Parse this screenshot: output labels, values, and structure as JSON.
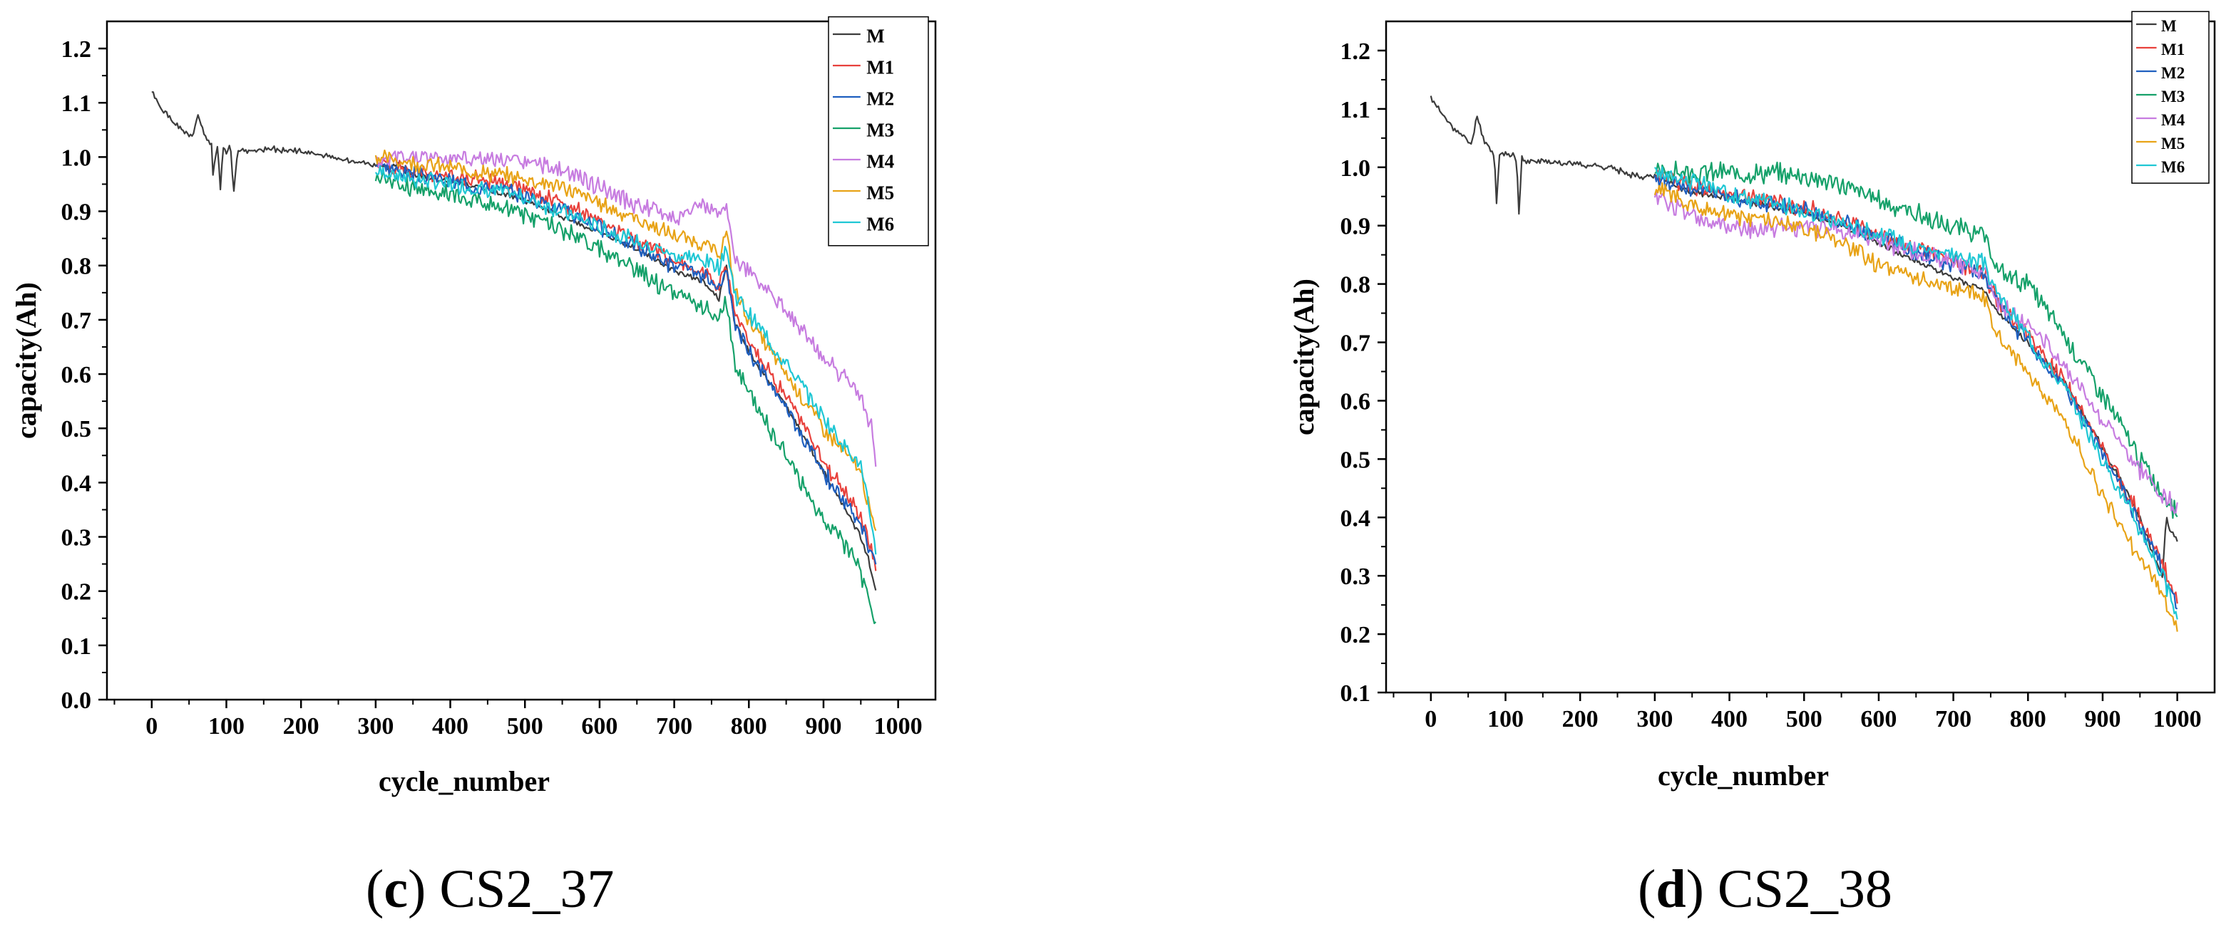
{
  "chart_data": [
    {
      "type": "line",
      "panel": "(c)",
      "caption_letter": "c",
      "caption_name": "CS2_37",
      "xlabel": "cycle_number",
      "ylabel": "capacity(Ah)",
      "xlim": [
        -60,
        1050
      ],
      "ylim": [
        0.0,
        1.25
      ],
      "xticks": [
        0,
        100,
        200,
        300,
        400,
        500,
        600,
        700,
        800,
        900,
        1000
      ],
      "yticks": [
        0.0,
        0.1,
        0.2,
        0.3,
        0.4,
        0.5,
        0.6,
        0.7,
        0.8,
        0.9,
        1.0,
        1.1,
        1.2
      ],
      "legend_position": "top-right",
      "series": [
        {
          "name": "M",
          "color": "#3c3c3c",
          "x": [
            0,
            10,
            25,
            40,
            55,
            62,
            70,
            80,
            82,
            88,
            92,
            96,
            100,
            105,
            110,
            115,
            130,
            160,
            200,
            240,
            260,
            280,
            300,
            320,
            330,
            340,
            350,
            360,
            380,
            400,
            450,
            500,
            550,
            600,
            650,
            700,
            740,
            760,
            770,
            780,
            800,
            850,
            900,
            930,
            950,
            960,
            965,
            970
          ],
          "y": [
            1.12,
            1.095,
            1.07,
            1.05,
            1.035,
            1.08,
            1.04,
            1.02,
            0.965,
            1.02,
            0.945,
            1.02,
            1.01,
            1.025,
            0.935,
            1.015,
            1.01,
            1.015,
            1.01,
            1.0,
            0.995,
            0.99,
            0.985,
            0.98,
            0.99,
            0.975,
            0.97,
            0.965,
            0.96,
            0.955,
            0.94,
            0.92,
            0.89,
            0.86,
            0.83,
            0.79,
            0.77,
            0.74,
            0.8,
            0.7,
            0.64,
            0.54,
            0.42,
            0.35,
            0.3,
            0.26,
            0.23,
            0.2
          ],
          "noise": 0.004,
          "seed": 1
        },
        {
          "name": "M1",
          "color": "#e8413c",
          "x": [
            300,
            350,
            400,
            450,
            500,
            550,
            600,
            650,
            700,
            740,
            760,
            770,
            780,
            800,
            850,
            900,
            950,
            970
          ],
          "y": [
            0.99,
            0.975,
            0.965,
            0.955,
            0.94,
            0.915,
            0.88,
            0.845,
            0.81,
            0.79,
            0.76,
            0.8,
            0.72,
            0.66,
            0.56,
            0.44,
            0.34,
            0.25
          ],
          "noise": 0.012,
          "seed": 2
        },
        {
          "name": "M2",
          "color": "#1f5fbf",
          "x": [
            300,
            350,
            400,
            450,
            500,
            550,
            600,
            650,
            700,
            740,
            760,
            770,
            780,
            800,
            850,
            900,
            950,
            970
          ],
          "y": [
            0.985,
            0.97,
            0.955,
            0.945,
            0.93,
            0.905,
            0.87,
            0.835,
            0.8,
            0.78,
            0.75,
            0.79,
            0.7,
            0.64,
            0.54,
            0.42,
            0.32,
            0.25
          ],
          "noise": 0.012,
          "seed": 3
        },
        {
          "name": "M3",
          "color": "#16a16a",
          "x": [
            300,
            350,
            400,
            450,
            500,
            550,
            600,
            650,
            700,
            740,
            760,
            770,
            780,
            800,
            850,
            900,
            940,
            960,
            970
          ],
          "y": [
            0.965,
            0.945,
            0.93,
            0.915,
            0.895,
            0.865,
            0.83,
            0.79,
            0.75,
            0.72,
            0.7,
            0.74,
            0.62,
            0.56,
            0.45,
            0.33,
            0.27,
            0.2,
            0.13
          ],
          "noise": 0.014,
          "seed": 4
        },
        {
          "name": "M4",
          "color": "#c77ce0",
          "x": [
            300,
            350,
            400,
            450,
            500,
            550,
            600,
            650,
            700,
            720,
            740,
            760,
            770,
            780,
            800,
            850,
            900,
            950,
            965,
            970
          ],
          "y": [
            0.99,
            1.0,
            1.0,
            0.995,
            0.99,
            0.975,
            0.945,
            0.91,
            0.89,
            0.9,
            0.91,
            0.9,
            0.92,
            0.81,
            0.79,
            0.72,
            0.63,
            0.56,
            0.5,
            0.43
          ],
          "noise": 0.013,
          "seed": 5
        },
        {
          "name": "M5",
          "color": "#e8a317",
          "x": [
            300,
            350,
            400,
            450,
            500,
            550,
            600,
            650,
            700,
            740,
            760,
            770,
            780,
            800,
            850,
            900,
            950,
            970
          ],
          "y": [
            1.0,
            0.99,
            0.98,
            0.97,
            0.96,
            0.945,
            0.915,
            0.885,
            0.855,
            0.84,
            0.82,
            0.86,
            0.76,
            0.7,
            0.6,
            0.5,
            0.42,
            0.3
          ],
          "noise": 0.012,
          "seed": 6
        },
        {
          "name": "M6",
          "color": "#1fc7d4",
          "x": [
            300,
            350,
            400,
            450,
            500,
            550,
            600,
            650,
            700,
            740,
            760,
            770,
            780,
            800,
            850,
            900,
            950,
            970
          ],
          "y": [
            0.975,
            0.96,
            0.95,
            0.94,
            0.925,
            0.9,
            0.87,
            0.845,
            0.82,
            0.81,
            0.8,
            0.84,
            0.75,
            0.71,
            0.62,
            0.52,
            0.43,
            0.28
          ],
          "noise": 0.012,
          "seed": 7
        }
      ]
    },
    {
      "type": "line",
      "panel": "(d)",
      "caption_letter": "d",
      "caption_name": "CS2_38",
      "xlabel": "cycle_number",
      "ylabel": "capacity(Ah)",
      "xlim": [
        -60,
        1050
      ],
      "ylim": [
        0.1,
        1.25
      ],
      "xticks": [
        0,
        100,
        200,
        300,
        400,
        500,
        600,
        700,
        800,
        900,
        1000
      ],
      "yticks": [
        0.1,
        0.2,
        0.3,
        0.4,
        0.5,
        0.6,
        0.7,
        0.8,
        0.9,
        1.0,
        1.1,
        1.2
      ],
      "legend_position": "top-right",
      "series": [
        {
          "name": "M",
          "color": "#3c3c3c",
          "x": [
            0,
            10,
            25,
            40,
            55,
            62,
            70,
            80,
            85,
            88,
            92,
            100,
            110,
            115,
            118,
            122,
            130,
            160,
            200,
            240,
            260,
            280,
            300,
            320,
            340,
            360,
            380,
            400,
            450,
            500,
            550,
            600,
            650,
            700,
            740,
            760,
            800,
            850,
            900,
            950,
            970,
            980,
            985,
            990,
            995,
            1000
          ],
          "y": [
            1.12,
            1.1,
            1.075,
            1.055,
            1.04,
            1.09,
            1.05,
            1.03,
            1.02,
            0.94,
            1.02,
            1.025,
            1.02,
            1.01,
            0.92,
            1.015,
            1.01,
            1.01,
            1.005,
            1.0,
            0.99,
            0.985,
            0.985,
            0.975,
            0.96,
            0.955,
            0.95,
            0.945,
            0.935,
            0.92,
            0.9,
            0.87,
            0.84,
            0.81,
            0.79,
            0.75,
            0.7,
            0.63,
            0.52,
            0.4,
            0.33,
            0.3,
            0.4,
            0.38,
            0.37,
            0.36
          ],
          "noise": 0.004,
          "seed": 11
        },
        {
          "name": "M1",
          "color": "#e8413c",
          "x": [
            300,
            350,
            400,
            450,
            500,
            550,
            600,
            650,
            700,
            740,
            760,
            800,
            850,
            900,
            950,
            980,
            1000
          ],
          "y": [
            0.985,
            0.97,
            0.955,
            0.945,
            0.93,
            0.91,
            0.885,
            0.86,
            0.84,
            0.82,
            0.77,
            0.71,
            0.63,
            0.52,
            0.4,
            0.32,
            0.25
          ],
          "noise": 0.012,
          "seed": 12
        },
        {
          "name": "M2",
          "color": "#1f5fbf",
          "x": [
            300,
            350,
            400,
            450,
            500,
            550,
            600,
            650,
            700,
            740,
            760,
            800,
            850,
            900,
            950,
            980,
            1000
          ],
          "y": [
            0.98,
            0.965,
            0.95,
            0.94,
            0.925,
            0.905,
            0.88,
            0.855,
            0.835,
            0.815,
            0.76,
            0.7,
            0.62,
            0.51,
            0.39,
            0.31,
            0.24
          ],
          "noise": 0.012,
          "seed": 13
        },
        {
          "name": "M3",
          "color": "#16a16a",
          "x": [
            300,
            350,
            400,
            450,
            500,
            550,
            600,
            650,
            700,
            740,
            760,
            800,
            850,
            900,
            950,
            980,
            1000
          ],
          "y": [
            0.99,
            0.99,
            0.99,
            0.99,
            0.985,
            0.97,
            0.945,
            0.92,
            0.895,
            0.885,
            0.82,
            0.8,
            0.71,
            0.61,
            0.5,
            0.44,
            0.41
          ],
          "noise": 0.014,
          "seed": 14
        },
        {
          "name": "M4",
          "color": "#c77ce0",
          "x": [
            300,
            350,
            400,
            450,
            500,
            550,
            600,
            650,
            700,
            740,
            760,
            800,
            850,
            900,
            950,
            980,
            1000
          ],
          "y": [
            0.955,
            0.915,
            0.895,
            0.895,
            0.9,
            0.895,
            0.875,
            0.855,
            0.835,
            0.825,
            0.77,
            0.73,
            0.66,
            0.57,
            0.48,
            0.44,
            0.42
          ],
          "noise": 0.013,
          "seed": 15
        },
        {
          "name": "M5",
          "color": "#e8a317",
          "x": [
            300,
            350,
            400,
            450,
            500,
            550,
            600,
            650,
            700,
            740,
            760,
            800,
            850,
            900,
            950,
            980,
            1000
          ],
          "y": [
            0.965,
            0.935,
            0.92,
            0.91,
            0.895,
            0.87,
            0.835,
            0.81,
            0.79,
            0.775,
            0.71,
            0.65,
            0.56,
            0.44,
            0.33,
            0.27,
            0.21
          ],
          "noise": 0.012,
          "seed": 16
        },
        {
          "name": "M6",
          "color": "#1fc7d4",
          "x": [
            300,
            350,
            400,
            450,
            500,
            550,
            600,
            650,
            700,
            740,
            760,
            800,
            850,
            900,
            950,
            980,
            1000
          ],
          "y": [
            0.995,
            0.975,
            0.955,
            0.94,
            0.925,
            0.905,
            0.885,
            0.865,
            0.85,
            0.835,
            0.78,
            0.71,
            0.62,
            0.5,
            0.38,
            0.3,
            0.23
          ],
          "noise": 0.012,
          "seed": 17
        }
      ]
    }
  ]
}
